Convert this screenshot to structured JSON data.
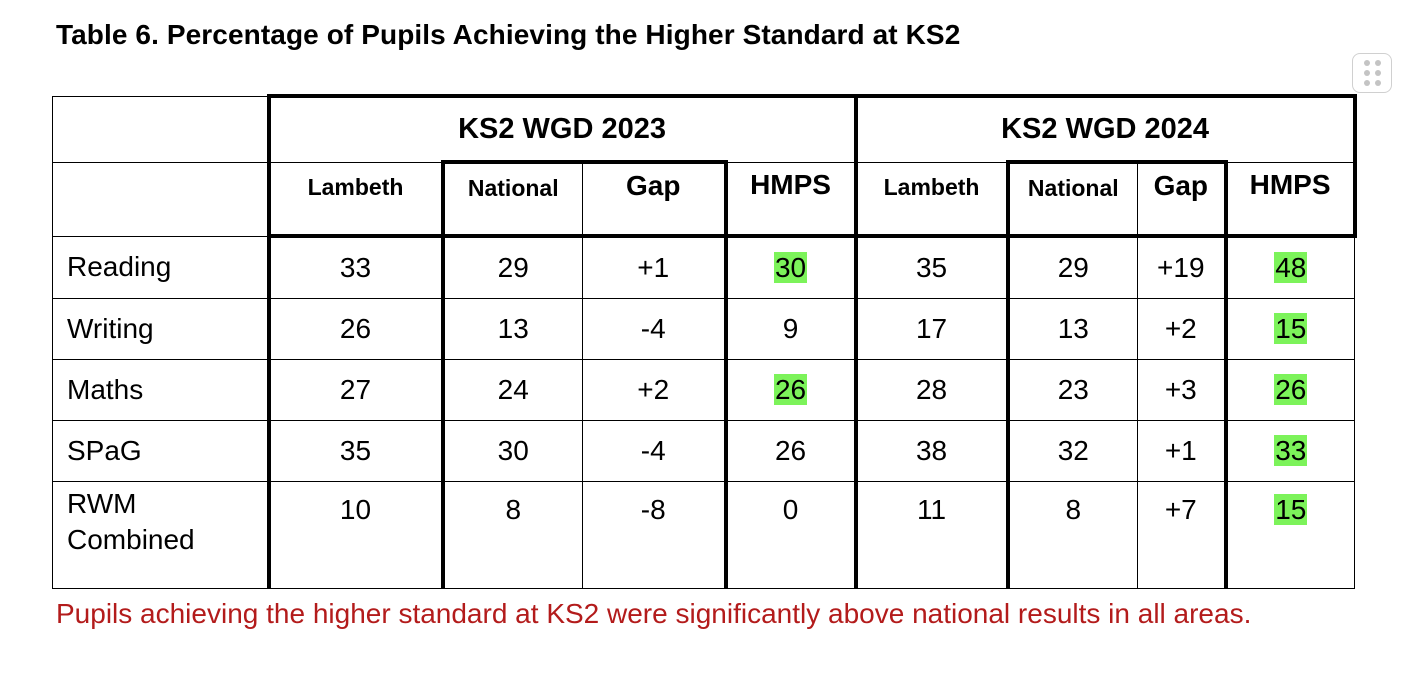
{
  "title": "Table 6. Percentage of Pupils Achieving the Higher Standard at KS2",
  "table": {
    "years": [
      "KS2 WGD 2023",
      "KS2 WGD 2024"
    ],
    "columns": [
      "Lambeth",
      "National",
      "Gap",
      "HMPS"
    ],
    "rows": [
      {
        "label": "Reading",
        "y2023": [
          "33",
          "29",
          "+1",
          "30"
        ],
        "y2024": [
          "35",
          "29",
          "+19",
          "48"
        ]
      },
      {
        "label": "Writing",
        "y2023": [
          "26",
          "13",
          "-4",
          "9"
        ],
        "y2024": [
          "17",
          "13",
          "+2",
          "15"
        ]
      },
      {
        "label": "Maths",
        "y2023": [
          "27",
          "24",
          "+2",
          "26"
        ],
        "y2024": [
          "28",
          "23",
          "+3",
          "26"
        ]
      },
      {
        "label": "SPaG",
        "y2023": [
          "35",
          "30",
          "-4",
          "26"
        ],
        "y2024": [
          "38",
          "32",
          "+1",
          "33"
        ]
      },
      {
        "label": "RWM Combined",
        "y2023": [
          "10",
          "8",
          "-8",
          "0"
        ],
        "y2024": [
          "11",
          "8",
          "+7",
          "15"
        ]
      }
    ],
    "highlight_color": "#7cf35a"
  },
  "note": "Pupils achieving the higher standard at KS2 were significantly above national results in all areas.",
  "note_color": "#b31b1b"
}
